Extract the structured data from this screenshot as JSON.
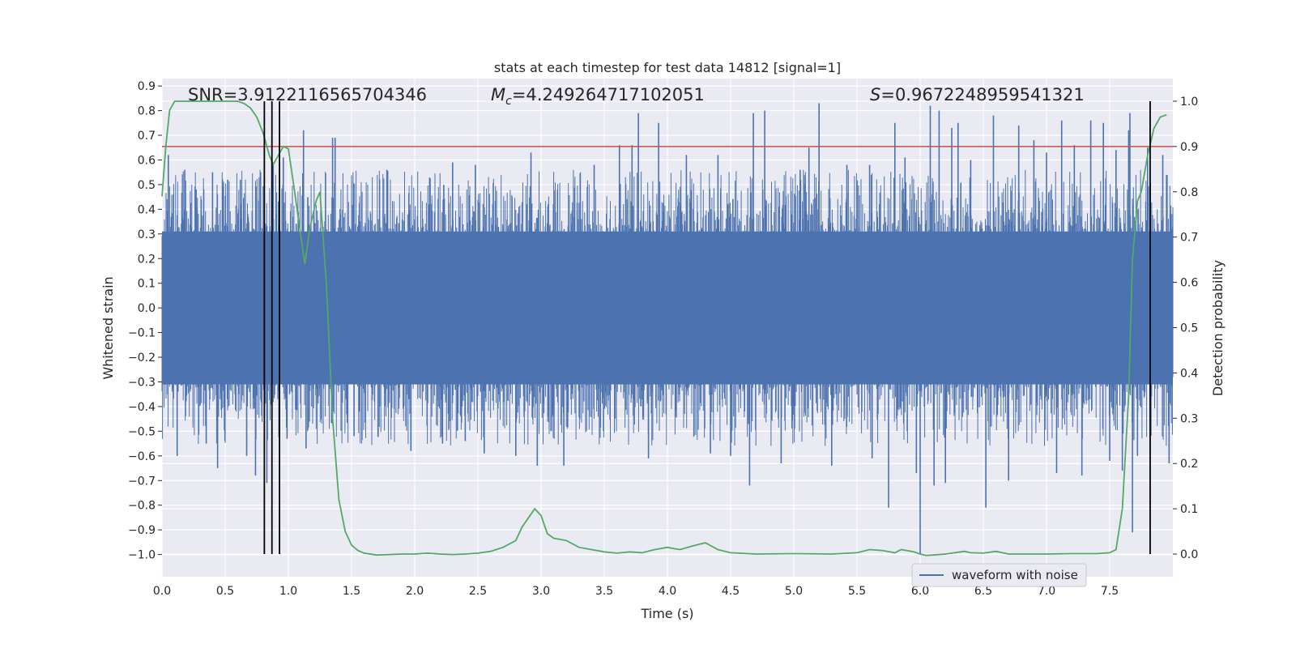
{
  "chart_data": {
    "type": "line",
    "title": "stats at each timestep for test data 14812 [signal=1]",
    "xlabel": "Time (s)",
    "ylabel_left": "Whitened strain",
    "ylabel_right": "Detection probability",
    "xlim": [
      0.0,
      8.0
    ],
    "ylim_left": [
      -1.09,
      0.93
    ],
    "ylim_right": [
      -0.05,
      1.05
    ],
    "x_ticks": [
      "0.0",
      "0.5",
      "1.0",
      "1.5",
      "2.0",
      "2.5",
      "3.0",
      "3.5",
      "4.0",
      "4.5",
      "5.0",
      "5.5",
      "6.0",
      "6.5",
      "7.0",
      "7.5"
    ],
    "y_left_ticks": [
      "0.9",
      "0.8",
      "0.7",
      "0.6",
      "0.5",
      "0.4",
      "0.3",
      "0.2",
      "0.1",
      "0.0",
      "−0.1",
      "−0.2",
      "−0.3",
      "−0.4",
      "−0.5",
      "−0.6",
      "−0.7",
      "−0.8",
      "−0.9",
      "−1.0"
    ],
    "y_right_ticks": [
      "1.0",
      "0.9",
      "0.8",
      "0.7",
      "0.6",
      "0.5",
      "0.4",
      "0.3",
      "0.2",
      "0.1",
      "0.0"
    ],
    "annotations": {
      "snr": "SNR=3.9122116565704346",
      "mc_symbol": "M",
      "mc_sub": "c",
      "mc_value": "=4.249264717102051",
      "s_symbol": "S",
      "s_value": "=0.9672248959541321"
    },
    "threshold": {
      "value": 0.9,
      "axis": "right",
      "color": "#c44e52"
    },
    "vertical_markers": [
      0.81,
      0.87,
      0.93,
      7.82
    ],
    "waveform": {
      "name": "waveform with noise",
      "color": "#4c72b0",
      "band_low": -0.31,
      "band_high": 0.31,
      "spikes": [
        {
          "t": 0.05,
          "v": 0.62
        },
        {
          "t": 0.12,
          "v": -0.6
        },
        {
          "t": 0.18,
          "v": 0.56
        },
        {
          "t": 0.27,
          "v": 0.48
        },
        {
          "t": 0.35,
          "v": -0.55
        },
        {
          "t": 0.4,
          "v": 0.55
        },
        {
          "t": 0.44,
          "v": -0.65
        },
        {
          "t": 0.52,
          "v": 0.52
        },
        {
          "t": 0.62,
          "v": 0.52
        },
        {
          "t": 0.67,
          "v": -0.6
        },
        {
          "t": 0.74,
          "v": -0.68
        },
        {
          "t": 0.78,
          "v": 0.55
        },
        {
          "t": 0.83,
          "v": -0.71
        },
        {
          "t": 0.88,
          "v": 0.59
        },
        {
          "t": 0.96,
          "v": 0.61
        },
        {
          "t": 1.12,
          "v": 0.72
        },
        {
          "t": 1.14,
          "v": -0.57
        },
        {
          "t": 1.35,
          "v": 0.69
        },
        {
          "t": 1.37,
          "v": 0.69
        },
        {
          "t": 1.52,
          "v": -0.52
        },
        {
          "t": 1.78,
          "v": 0.56
        },
        {
          "t": 1.97,
          "v": -0.58
        },
        {
          "t": 2.22,
          "v": -0.55
        },
        {
          "t": 2.3,
          "v": 0.59
        },
        {
          "t": 2.4,
          "v": -0.54
        },
        {
          "t": 2.48,
          "v": 0.58
        },
        {
          "t": 2.55,
          "v": -0.59
        },
        {
          "t": 2.8,
          "v": -0.6
        },
        {
          "t": 2.92,
          "v": 0.63
        },
        {
          "t": 2.97,
          "v": -0.64
        },
        {
          "t": 3.18,
          "v": -0.64
        },
        {
          "t": 3.42,
          "v": 0.58
        },
        {
          "t": 3.62,
          "v": 0.66
        },
        {
          "t": 3.72,
          "v": 0.66
        },
        {
          "t": 3.77,
          "v": 0.79
        },
        {
          "t": 3.85,
          "v": -0.61
        },
        {
          "t": 3.93,
          "v": 0.75
        },
        {
          "t": 4.15,
          "v": 0.62
        },
        {
          "t": 4.34,
          "v": -0.59
        },
        {
          "t": 4.4,
          "v": 0.62
        },
        {
          "t": 4.5,
          "v": -0.6
        },
        {
          "t": 4.65,
          "v": -0.72
        },
        {
          "t": 4.68,
          "v": 0.79
        },
        {
          "t": 4.77,
          "v": 0.8
        },
        {
          "t": 4.9,
          "v": -0.63
        },
        {
          "t": 5.05,
          "v": 0.56
        },
        {
          "t": 5.12,
          "v": 0.65
        },
        {
          "t": 5.2,
          "v": 0.83
        },
        {
          "t": 5.3,
          "v": -0.64
        },
        {
          "t": 5.42,
          "v": 0.58
        },
        {
          "t": 5.6,
          "v": 0.58
        },
        {
          "t": 5.62,
          "v": -0.61
        },
        {
          "t": 5.75,
          "v": -0.81
        },
        {
          "t": 5.8,
          "v": 0.75
        },
        {
          "t": 5.88,
          "v": 0.61
        },
        {
          "t": 5.97,
          "v": -0.67
        },
        {
          "t": 6.0,
          "v": -1.0
        },
        {
          "t": 6.08,
          "v": 0.82
        },
        {
          "t": 6.11,
          "v": -0.72
        },
        {
          "t": 6.15,
          "v": 0.8
        },
        {
          "t": 6.2,
          "v": -0.71
        },
        {
          "t": 6.25,
          "v": 0.73
        },
        {
          "t": 6.3,
          "v": 0.75
        },
        {
          "t": 6.4,
          "v": 0.6
        },
        {
          "t": 6.52,
          "v": -0.81
        },
        {
          "t": 6.58,
          "v": 0.78
        },
        {
          "t": 6.7,
          "v": -0.7
        },
        {
          "t": 6.78,
          "v": 0.74
        },
        {
          "t": 6.9,
          "v": 0.68
        },
        {
          "t": 7.0,
          "v": 0.63
        },
        {
          "t": 7.08,
          "v": -0.67
        },
        {
          "t": 7.12,
          "v": 0.76
        },
        {
          "t": 7.22,
          "v": 0.66
        },
        {
          "t": 7.28,
          "v": -0.68
        },
        {
          "t": 7.35,
          "v": 0.76
        },
        {
          "t": 7.45,
          "v": 0.75
        },
        {
          "t": 7.5,
          "v": -0.62
        },
        {
          "t": 7.55,
          "v": 0.64
        },
        {
          "t": 7.6,
          "v": -0.66
        },
        {
          "t": 7.65,
          "v": 0.72
        },
        {
          "t": 7.66,
          "v": 0.79
        },
        {
          "t": 7.68,
          "v": -0.91
        },
        {
          "t": 7.72,
          "v": -0.6
        },
        {
          "t": 7.8,
          "v": 0.65
        },
        {
          "t": 7.92,
          "v": 0.62
        },
        {
          "t": 7.97,
          "v": -0.63
        }
      ]
    },
    "probability": {
      "color": "#55a868",
      "t": [
        0.0,
        0.03,
        0.06,
        0.1,
        0.15,
        0.25,
        0.35,
        0.45,
        0.55,
        0.6,
        0.65,
        0.7,
        0.75,
        0.8,
        0.85,
        0.88,
        0.92,
        0.96,
        1.0,
        1.05,
        1.1,
        1.13,
        1.17,
        1.22,
        1.25,
        1.3,
        1.35,
        1.4,
        1.45,
        1.5,
        1.55,
        1.6,
        1.7,
        1.8,
        1.9,
        2.0,
        2.1,
        2.2,
        2.3,
        2.4,
        2.5,
        2.6,
        2.7,
        2.8,
        2.85,
        2.9,
        2.95,
        3.0,
        3.05,
        3.1,
        3.2,
        3.3,
        3.4,
        3.5,
        3.6,
        3.7,
        3.8,
        3.9,
        4.0,
        4.05,
        4.1,
        4.2,
        4.3,
        4.4,
        4.5,
        4.7,
        5.0,
        5.3,
        5.5,
        5.6,
        5.7,
        5.8,
        5.85,
        5.95,
        6.0,
        6.05,
        6.1,
        6.2,
        6.3,
        6.35,
        6.4,
        6.5,
        6.6,
        6.7,
        6.8,
        7.0,
        7.2,
        7.4,
        7.5,
        7.55,
        7.6,
        7.65,
        7.68,
        7.72,
        7.75,
        7.8,
        7.85,
        7.9,
        7.95
      ],
      "p": [
        0.79,
        0.9,
        0.98,
        1.0,
        1.0,
        1.0,
        1.0,
        1.0,
        1.0,
        1.0,
        0.995,
        0.985,
        0.965,
        0.93,
        0.88,
        0.86,
        0.88,
        0.9,
        0.895,
        0.8,
        0.7,
        0.64,
        0.72,
        0.78,
        0.8,
        0.6,
        0.3,
        0.12,
        0.05,
        0.02,
        0.008,
        0.002,
        -0.002,
        -0.001,
        0.0,
        0.0,
        0.002,
        0.0,
        -0.001,
        0.0,
        0.002,
        0.006,
        0.015,
        0.03,
        0.06,
        0.08,
        0.1,
        0.085,
        0.045,
        0.035,
        0.03,
        0.015,
        0.01,
        0.005,
        0.002,
        0.005,
        0.003,
        0.01,
        0.015,
        0.012,
        0.01,
        0.018,
        0.025,
        0.01,
        0.003,
        0.0,
        0.001,
        0.0,
        0.003,
        0.01,
        0.008,
        0.003,
        0.01,
        0.005,
        0.0,
        -0.003,
        -0.002,
        0.0,
        0.004,
        0.006,
        0.003,
        0.002,
        0.006,
        0.0,
        0.0,
        0.0,
        0.001,
        0.001,
        0.003,
        0.01,
        0.1,
        0.35,
        0.65,
        0.78,
        0.8,
        0.88,
        0.94,
        0.965,
        0.97
      ]
    },
    "legend": {
      "label": "waveform with noise",
      "placement": "lower-right"
    }
  }
}
